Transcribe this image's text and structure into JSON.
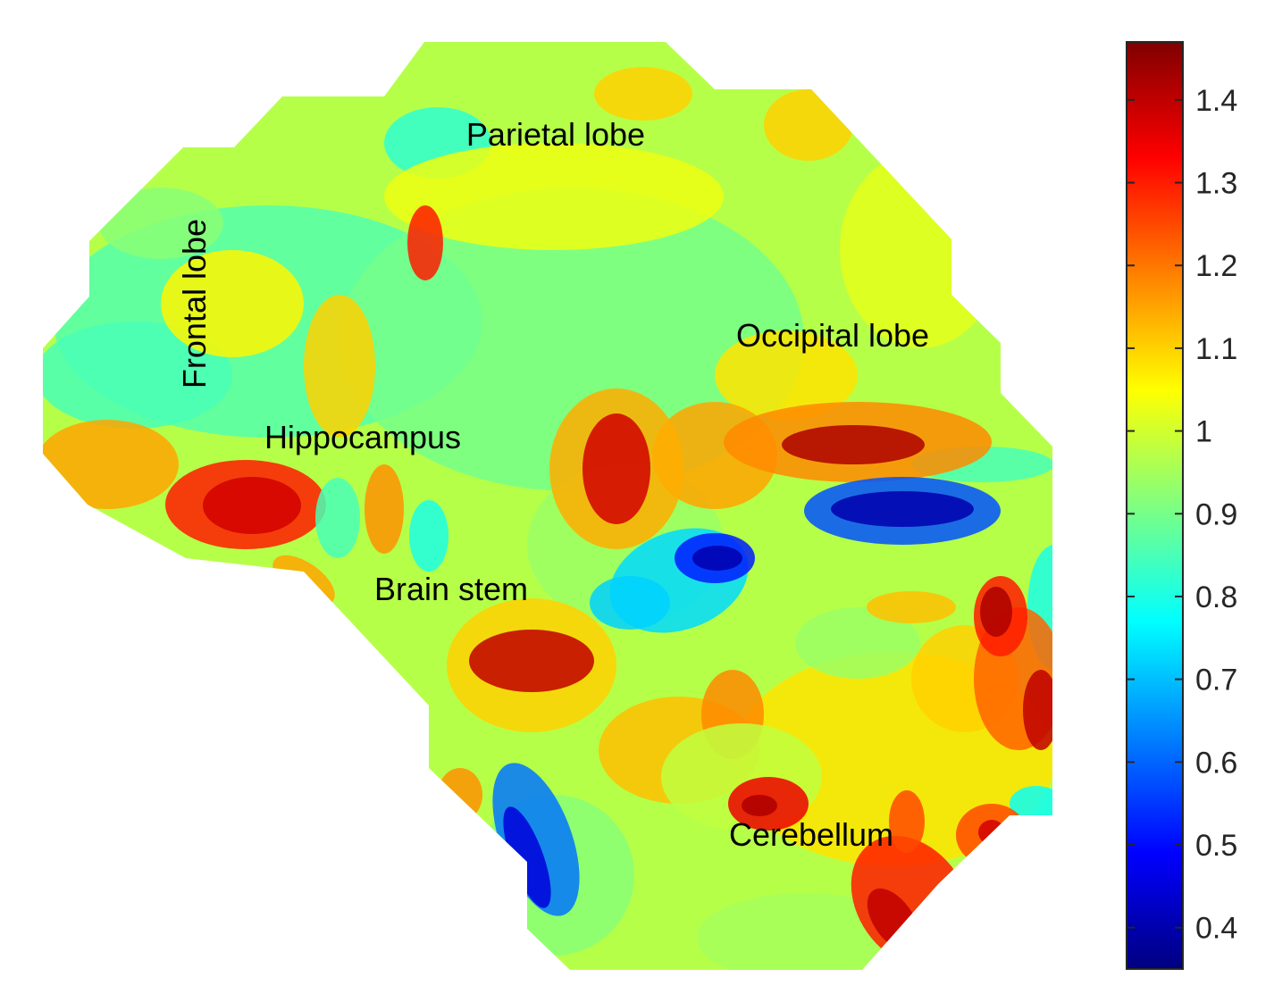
{
  "chart_data": {
    "type": "heatmap",
    "title": "",
    "xlabel": "",
    "ylabel": "",
    "colormap": "jet",
    "color_range": [
      0.35,
      1.47
    ],
    "colorbar": {
      "ticks": [
        {
          "value": 0.4,
          "label": "0.4"
        },
        {
          "value": 0.5,
          "label": "0.5"
        },
        {
          "value": 0.6,
          "label": "0.6"
        },
        {
          "value": 0.7,
          "label": "0.7"
        },
        {
          "value": 0.8,
          "label": "0.8"
        },
        {
          "value": 0.9,
          "label": "0.9"
        },
        {
          "value": 1.0,
          "label": "1"
        },
        {
          "value": 1.1,
          "label": "1.1"
        },
        {
          "value": 1.2,
          "label": "1.2"
        },
        {
          "value": 1.3,
          "label": "1.3"
        },
        {
          "value": 1.4,
          "label": "1.4"
        }
      ],
      "placement": "right"
    },
    "background_value": 0.97,
    "annotations": [
      {
        "text": "Parietal lobe"
      },
      {
        "text": "Frontal lobe"
      },
      {
        "text": "Occipital lobe"
      },
      {
        "text": "Hippocampus"
      },
      {
        "text": "Brain stem"
      },
      {
        "text": "Cerebellum"
      }
    ]
  }
}
